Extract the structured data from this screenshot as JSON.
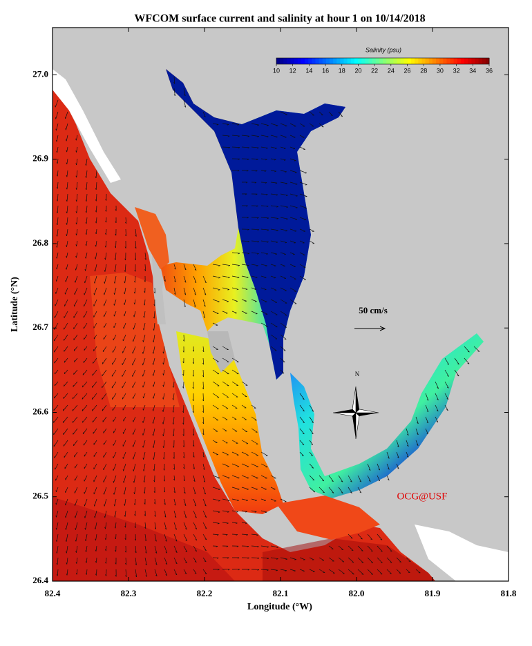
{
  "chart_data": {
    "type": "map",
    "title": "WFCOM surface current and salinity at hour 1 on 10/14/2018",
    "x_label": "Longitude (°W)",
    "y_label": "Latitude (°N)",
    "xlim": [
      82.4,
      81.8
    ],
    "ylim": [
      26.4,
      27.056
    ],
    "xticks": [
      82.4,
      82.3,
      82.2,
      82.1,
      {
        "value": 82,
        "label": "82.0"
      },
      81.9,
      81.8
    ],
    "yticks": [
      26.4,
      26.5,
      26.6,
      26.7,
      26.8,
      26.9,
      {
        "value": 27,
        "label": "27.0"
      }
    ],
    "colorbar": {
      "label": "Salinity (psu)",
      "range": [
        10,
        36
      ],
      "ticks": [
        10,
        12,
        14,
        16,
        18,
        20,
        22,
        24,
        26,
        28,
        30,
        32,
        34,
        36
      ],
      "colormap": "jet"
    },
    "scale_label": "50 cm/s",
    "compass_label": "N",
    "credit": "OCG@USF"
  }
}
